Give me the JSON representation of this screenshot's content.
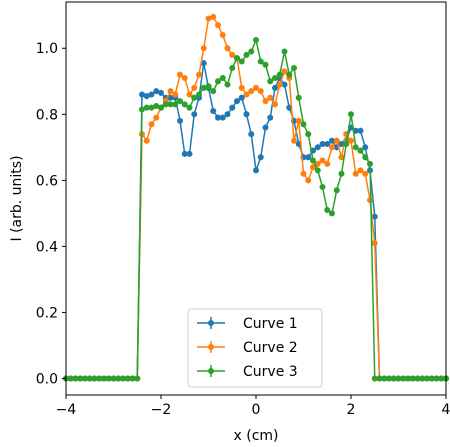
{
  "chart_data": {
    "type": "line",
    "title": "",
    "xlabel": "x (cm)",
    "ylabel": "I (arb. units)",
    "xlim": [
      -4,
      4
    ],
    "ylim": [
      -0.05,
      1.14
    ],
    "xticks": [
      -4,
      -2,
      0,
      2,
      4
    ],
    "xtick_labels": [
      "−4",
      "−2",
      "0",
      "2",
      "4"
    ],
    "yticks": [
      0.0,
      0.2,
      0.4,
      0.6,
      0.8,
      1.0
    ],
    "ytick_labels": [
      "0.0",
      "0.2",
      "0.4",
      "0.6",
      "0.8",
      "1.0"
    ],
    "grid": false,
    "legend_position": "lower center",
    "error_bars": true,
    "series": [
      {
        "name": "Curve 1",
        "color": "#1f77b4",
        "x": [
          -4.0,
          -3.9,
          -3.8,
          -3.7,
          -3.6,
          -3.5,
          -3.4,
          -3.3,
          -3.2,
          -3.1,
          -3.0,
          -2.9,
          -2.8,
          -2.7,
          -2.6,
          -2.5,
          -2.4,
          -2.3,
          -2.2,
          -2.1,
          -2.0,
          -1.9,
          -1.8,
          -1.7,
          -1.6,
          -1.5,
          -1.4,
          -1.3,
          -1.2,
          -1.1,
          -1.0,
          -0.9,
          -0.8,
          -0.7,
          -0.6,
          -0.5,
          -0.4,
          -0.3,
          -0.2,
          -0.1,
          0.0,
          0.1,
          0.2,
          0.3,
          0.4,
          0.5,
          0.6,
          0.7,
          0.8,
          0.9,
          1.0,
          1.1,
          1.2,
          1.3,
          1.4,
          1.5,
          1.6,
          1.7,
          1.8,
          1.9,
          2.0,
          2.1,
          2.2,
          2.3,
          2.4,
          2.5,
          2.6,
          2.7,
          2.8,
          2.9,
          3.0,
          3.1,
          3.2,
          3.3,
          3.4,
          3.5,
          3.6,
          3.7,
          3.8,
          3.9,
          4.0
        ],
        "y": [
          0,
          0,
          0,
          0,
          0,
          0,
          0,
          0,
          0,
          0,
          0,
          0,
          0,
          0,
          0,
          0,
          0.86,
          0.855,
          0.86,
          0.87,
          0.865,
          0.85,
          0.85,
          0.85,
          0.78,
          0.68,
          0.68,
          0.8,
          0.85,
          0.955,
          0.88,
          0.81,
          0.79,
          0.79,
          0.8,
          0.82,
          0.84,
          0.85,
          0.8,
          0.74,
          0.63,
          0.67,
          0.76,
          0.79,
          0.88,
          0.91,
          0.89,
          0.82,
          0.78,
          0.71,
          0.67,
          0.67,
          0.69,
          0.7,
          0.71,
          0.71,
          0.72,
          0.7,
          0.71,
          0.72,
          0.76,
          0.75,
          0.75,
          0.7,
          0.63,
          0.49,
          0,
          0,
          0,
          0,
          0,
          0,
          0,
          0,
          0,
          0,
          0,
          0,
          0,
          0,
          0
        ]
      },
      {
        "name": "Curve 2",
        "color": "#ff7f0e",
        "x": [
          -4.0,
          -3.9,
          -3.8,
          -3.7,
          -3.6,
          -3.5,
          -3.4,
          -3.3,
          -3.2,
          -3.1,
          -3.0,
          -2.9,
          -2.8,
          -2.7,
          -2.6,
          -2.5,
          -2.4,
          -2.3,
          -2.2,
          -2.1,
          -2.0,
          -1.9,
          -1.8,
          -1.7,
          -1.6,
          -1.5,
          -1.4,
          -1.3,
          -1.2,
          -1.1,
          -1.0,
          -0.9,
          -0.8,
          -0.7,
          -0.6,
          -0.5,
          -0.4,
          -0.3,
          -0.2,
          -0.1,
          0.0,
          0.1,
          0.2,
          0.3,
          0.4,
          0.5,
          0.6,
          0.7,
          0.8,
          0.9,
          1.0,
          1.1,
          1.2,
          1.3,
          1.4,
          1.5,
          1.6,
          1.7,
          1.8,
          1.9,
          2.0,
          2.1,
          2.2,
          2.3,
          2.4,
          2.5,
          2.6,
          2.7,
          2.8,
          2.9,
          3.0,
          3.1,
          3.2,
          3.3,
          3.4,
          3.5,
          3.6,
          3.7,
          3.8,
          3.9,
          4.0
        ],
        "y": [
          0,
          0,
          0,
          0,
          0,
          0,
          0,
          0,
          0,
          0,
          0,
          0,
          0,
          0,
          0,
          0,
          0.74,
          0.72,
          0.77,
          0.79,
          0.82,
          0.84,
          0.87,
          0.86,
          0.92,
          0.91,
          0.86,
          0.88,
          0.92,
          1.0,
          1.09,
          1.095,
          1.07,
          1.04,
          1.0,
          0.98,
          0.97,
          0.88,
          0.86,
          0.87,
          0.88,
          0.87,
          0.84,
          0.85,
          0.83,
          0.89,
          0.93,
          0.91,
          0.72,
          0.78,
          0.62,
          0.6,
          0.64,
          0.65,
          0.66,
          0.65,
          0.7,
          0.72,
          0.67,
          0.74,
          0.72,
          0.62,
          0.63,
          0.62,
          0.54,
          0.41,
          0,
          0,
          0,
          0,
          0,
          0,
          0,
          0,
          0,
          0,
          0,
          0,
          0,
          0,
          0
        ]
      },
      {
        "name": "Curve 3",
        "color": "#2ca02c",
        "x": [
          -4.0,
          -3.9,
          -3.8,
          -3.7,
          -3.6,
          -3.5,
          -3.4,
          -3.3,
          -3.2,
          -3.1,
          -3.0,
          -2.9,
          -2.8,
          -2.7,
          -2.6,
          -2.5,
          -2.4,
          -2.3,
          -2.2,
          -2.1,
          -2.0,
          -1.9,
          -1.8,
          -1.7,
          -1.6,
          -1.5,
          -1.4,
          -1.3,
          -1.2,
          -1.1,
          -1.0,
          -0.9,
          -0.8,
          -0.7,
          -0.6,
          -0.5,
          -0.4,
          -0.3,
          -0.2,
          -0.1,
          0.0,
          0.1,
          0.2,
          0.3,
          0.4,
          0.5,
          0.6,
          0.7,
          0.8,
          0.9,
          1.0,
          1.1,
          1.2,
          1.3,
          1.4,
          1.5,
          1.6,
          1.7,
          1.8,
          1.9,
          2.0,
          2.1,
          2.2,
          2.3,
          2.4,
          2.5,
          2.6,
          2.7,
          2.8,
          2.9,
          3.0,
          3.1,
          3.2,
          3.3,
          3.4,
          3.5,
          3.6,
          3.7,
          3.8,
          3.9,
          4.0
        ],
        "y": [
          0,
          0,
          0,
          0,
          0,
          0,
          0,
          0,
          0,
          0,
          0,
          0,
          0,
          0,
          0,
          0,
          0.815,
          0.82,
          0.82,
          0.825,
          0.82,
          0.83,
          0.83,
          0.83,
          0.84,
          0.83,
          0.82,
          0.85,
          0.86,
          0.88,
          0.885,
          0.87,
          0.9,
          0.91,
          0.89,
          0.94,
          0.97,
          0.96,
          0.98,
          0.99,
          1.025,
          0.96,
          0.95,
          0.9,
          0.91,
          0.92,
          0.99,
          0.92,
          0.94,
          0.85,
          0.77,
          0.74,
          0.66,
          0.63,
          0.58,
          0.51,
          0.5,
          0.57,
          0.62,
          0.71,
          0.8,
          0.7,
          0.69,
          0.67,
          0.65,
          0,
          0,
          0,
          0,
          0,
          0,
          0,
          0,
          0,
          0,
          0,
          0,
          0,
          0,
          0,
          0
        ]
      }
    ]
  }
}
